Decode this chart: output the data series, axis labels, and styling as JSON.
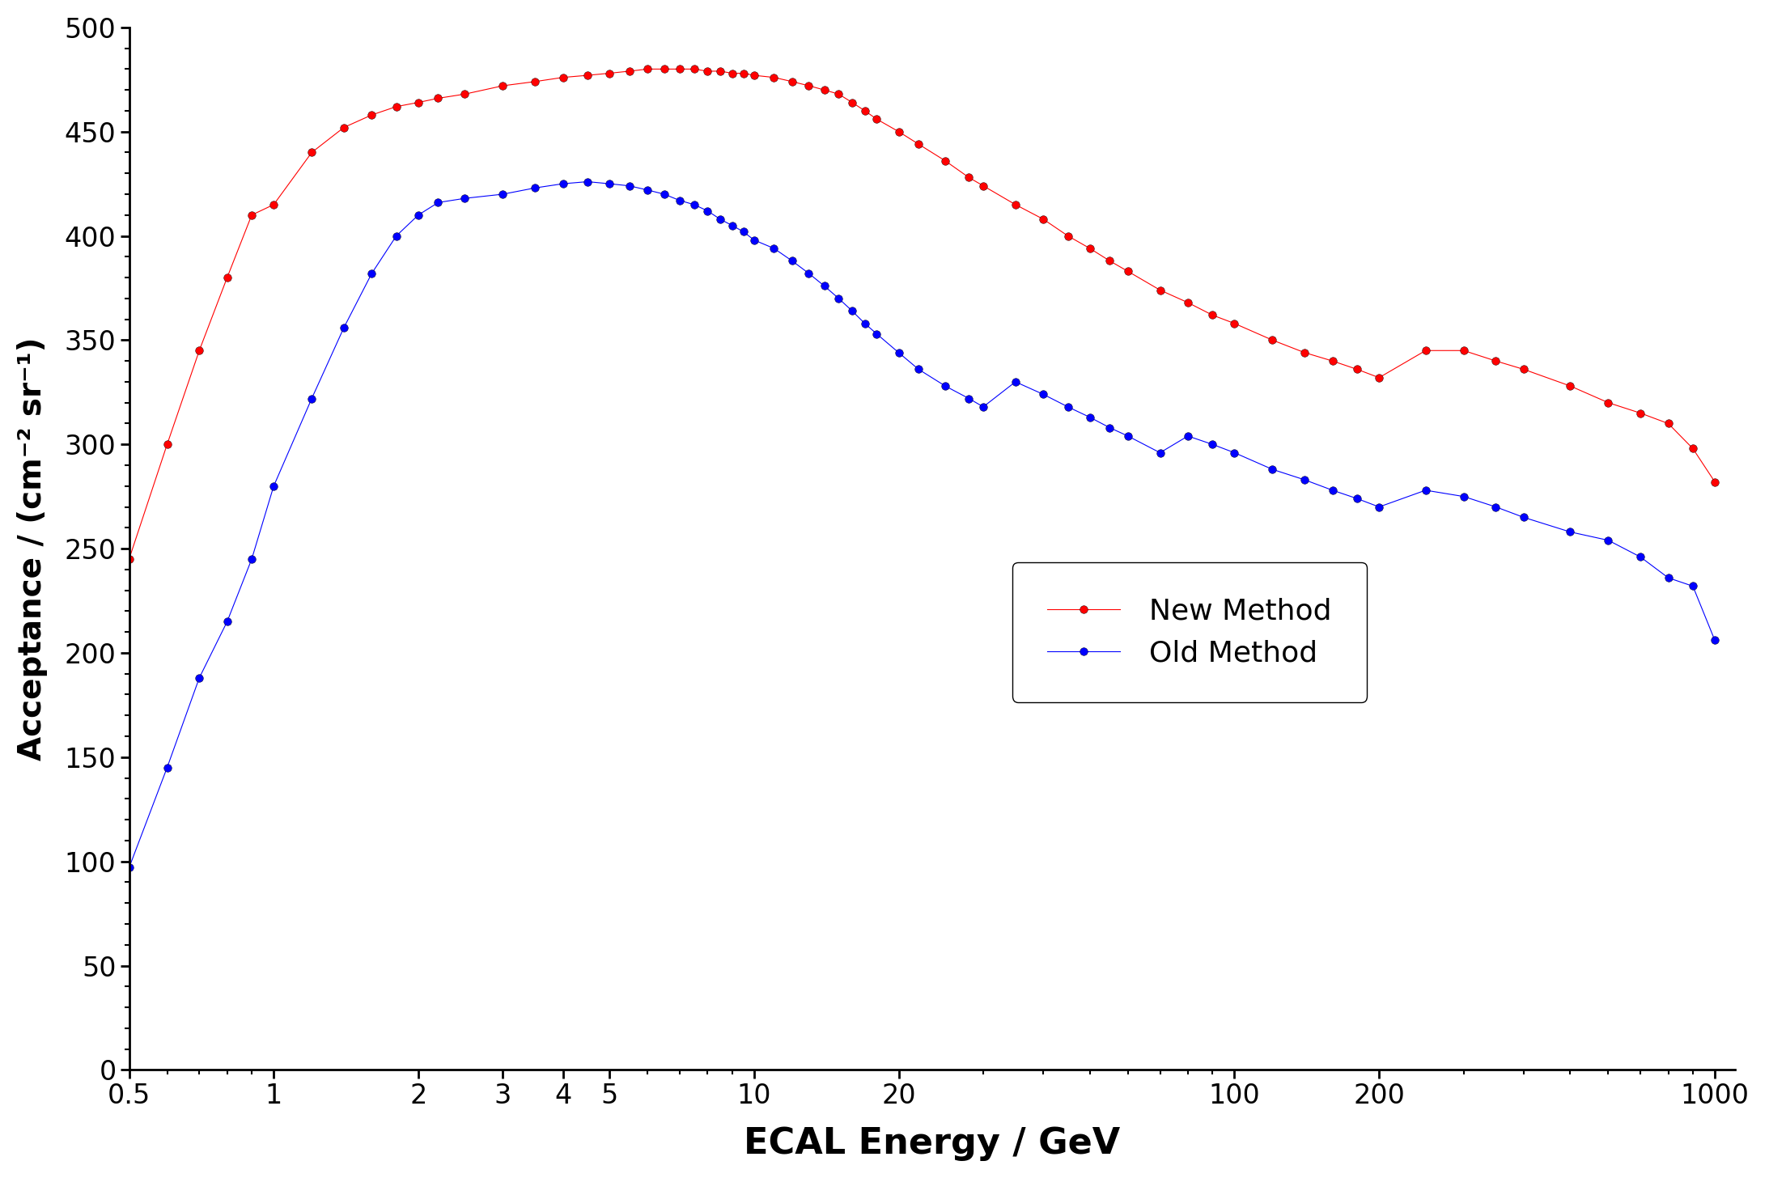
{
  "new_method_x": [
    0.5,
    0.6,
    0.7,
    0.8,
    0.9,
    1.0,
    1.2,
    1.4,
    1.6,
    1.8,
    2.0,
    2.2,
    2.5,
    3.0,
    3.5,
    4.0,
    4.5,
    5.0,
    5.5,
    6.0,
    6.5,
    7.0,
    7.5,
    8.0,
    8.5,
    9.0,
    9.5,
    10,
    11,
    12,
    13,
    14,
    15,
    16,
    17,
    18,
    20,
    22,
    25,
    28,
    30,
    35,
    40,
    45,
    50,
    55,
    60,
    70,
    80,
    90,
    100,
    120,
    140,
    160,
    180,
    200,
    250,
    300,
    350,
    400,
    500,
    600,
    700,
    800,
    900,
    1000
  ],
  "new_method_y": [
    245,
    300,
    345,
    380,
    410,
    415,
    440,
    452,
    458,
    462,
    464,
    466,
    468,
    472,
    474,
    476,
    477,
    478,
    479,
    480,
    480,
    480,
    480,
    479,
    479,
    478,
    478,
    477,
    476,
    474,
    472,
    470,
    468,
    464,
    460,
    456,
    450,
    444,
    436,
    428,
    424,
    415,
    408,
    400,
    394,
    388,
    383,
    374,
    368,
    362,
    358,
    350,
    344,
    340,
    336,
    332,
    345,
    345,
    340,
    336,
    328,
    320,
    315,
    310,
    298,
    282
  ],
  "old_method_x": [
    0.5,
    0.6,
    0.7,
    0.8,
    0.9,
    1.0,
    1.2,
    1.4,
    1.6,
    1.8,
    2.0,
    2.2,
    2.5,
    3.0,
    3.5,
    4.0,
    4.5,
    5.0,
    5.5,
    6.0,
    6.5,
    7.0,
    7.5,
    8.0,
    8.5,
    9.0,
    9.5,
    10,
    11,
    12,
    13,
    14,
    15,
    16,
    17,
    18,
    20,
    22,
    25,
    28,
    30,
    35,
    40,
    45,
    50,
    55,
    60,
    70,
    80,
    90,
    100,
    120,
    140,
    160,
    180,
    200,
    250,
    300,
    350,
    400,
    500,
    600,
    700,
    800,
    900,
    1000
  ],
  "old_method_y": [
    97,
    145,
    188,
    215,
    245,
    280,
    322,
    356,
    382,
    400,
    410,
    416,
    418,
    420,
    423,
    425,
    426,
    425,
    424,
    422,
    420,
    417,
    415,
    412,
    408,
    405,
    402,
    398,
    394,
    388,
    382,
    376,
    370,
    364,
    358,
    353,
    344,
    336,
    328,
    322,
    318,
    330,
    324,
    318,
    313,
    308,
    304,
    296,
    304,
    300,
    296,
    288,
    283,
    278,
    274,
    270,
    278,
    275,
    270,
    265,
    258,
    254,
    246,
    236,
    232,
    206
  ],
  "new_color": "#ff0000",
  "old_color": "#0000ff",
  "ylabel": "Acceptance / (cm⁻² sr⁻¹)",
  "xlabel": "ECAL Energy / GeV",
  "ylim": [
    0,
    500
  ],
  "xlim": [
    0.5,
    1100
  ],
  "yticks": [
    0,
    50,
    100,
    150,
    200,
    250,
    300,
    350,
    400,
    450,
    500
  ],
  "xtick_labels": [
    "0.5",
    "1",
    "2",
    "3",
    "4",
    "5",
    "10",
    "20",
    "100",
    "200",
    "1000"
  ],
  "xtick_positions": [
    0.5,
    1,
    2,
    3,
    4,
    5,
    10,
    20,
    100,
    200,
    1000
  ],
  "legend_new": "New Method",
  "legend_old": "Old Method",
  "marker_size": 7
}
